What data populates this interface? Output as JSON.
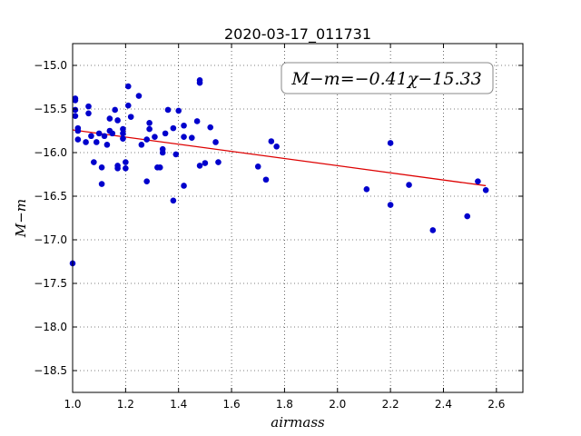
{
  "chart_data": {
    "type": "scatter",
    "title": "2020-03-17_011731",
    "xlabel": "airmass",
    "ylabel": "M−m",
    "xlim": [
      1.0,
      2.7
    ],
    "ylim": [
      -18.75,
      -14.75
    ],
    "y_inverted": true,
    "grid": true,
    "xticks": [
      "1.0",
      "1.2",
      "1.4",
      "1.6",
      "1.8",
      "2.0",
      "2.2",
      "2.4",
      "2.6"
    ],
    "yticks": [
      "−15.0",
      "−15.5",
      "−16.0",
      "−16.5",
      "−17.0",
      "−17.5",
      "−18.0",
      "−18.5"
    ],
    "annotation": "M−m=−0.41χ−15.33",
    "annotation_placement": "top-right",
    "point_color": "#0000cc",
    "fit_color": "#dd0000",
    "fit": {
      "slope": -0.41,
      "intercept": -15.33,
      "x_range": [
        1.0,
        2.56
      ]
    },
    "points": [
      [
        1.0,
        -17.27
      ],
      [
        1.01,
        -15.38
      ],
      [
        1.01,
        -15.4
      ],
      [
        1.01,
        -15.51
      ],
      [
        1.01,
        -15.58
      ],
      [
        1.02,
        -15.72
      ],
      [
        1.02,
        -15.75
      ],
      [
        1.02,
        -15.85
      ],
      [
        1.05,
        -15.88
      ],
      [
        1.06,
        -15.55
      ],
      [
        1.06,
        -15.47
      ],
      [
        1.07,
        -15.81
      ],
      [
        1.08,
        -16.11
      ],
      [
        1.09,
        -15.88
      ],
      [
        1.1,
        -15.78
      ],
      [
        1.11,
        -16.17
      ],
      [
        1.11,
        -16.36
      ],
      [
        1.12,
        -15.81
      ],
      [
        1.13,
        -15.91
      ],
      [
        1.14,
        -15.61
      ],
      [
        1.14,
        -15.75
      ],
      [
        1.15,
        -15.78
      ],
      [
        1.16,
        -15.51
      ],
      [
        1.17,
        -15.63
      ],
      [
        1.17,
        -16.15
      ],
      [
        1.17,
        -16.18
      ],
      [
        1.19,
        -15.78
      ],
      [
        1.19,
        -15.84
      ],
      [
        1.19,
        -15.73
      ],
      [
        1.2,
        -16.11
      ],
      [
        1.2,
        -16.18
      ],
      [
        1.21,
        -15.24
      ],
      [
        1.21,
        -15.46
      ],
      [
        1.22,
        -15.59
      ],
      [
        1.25,
        -15.35
      ],
      [
        1.26,
        -15.91
      ],
      [
        1.28,
        -15.85
      ],
      [
        1.28,
        -16.33
      ],
      [
        1.29,
        -15.66
      ],
      [
        1.29,
        -15.73
      ],
      [
        1.31,
        -15.82
      ],
      [
        1.32,
        -16.17
      ],
      [
        1.33,
        -16.17
      ],
      [
        1.34,
        -15.96
      ],
      [
        1.34,
        -16.0
      ],
      [
        1.35,
        -15.78
      ],
      [
        1.36,
        -15.51
      ],
      [
        1.38,
        -15.72
      ],
      [
        1.38,
        -16.55
      ],
      [
        1.39,
        -16.02
      ],
      [
        1.4,
        -15.52
      ],
      [
        1.42,
        -15.69
      ],
      [
        1.42,
        -15.82
      ],
      [
        1.42,
        -16.38
      ],
      [
        1.45,
        -15.83
      ],
      [
        1.47,
        -15.64
      ],
      [
        1.48,
        -15.17
      ],
      [
        1.48,
        -15.2
      ],
      [
        1.48,
        -16.15
      ],
      [
        1.5,
        -16.12
      ],
      [
        1.52,
        -15.71
      ],
      [
        1.54,
        -15.88
      ],
      [
        1.55,
        -16.11
      ],
      [
        1.7,
        -16.16
      ],
      [
        1.73,
        -16.31
      ],
      [
        1.75,
        -15.87
      ],
      [
        1.77,
        -15.93
      ],
      [
        2.11,
        -16.42
      ],
      [
        2.2,
        -15.89
      ],
      [
        2.2,
        -16.6
      ],
      [
        2.27,
        -16.37
      ],
      [
        2.36,
        -16.89
      ],
      [
        2.49,
        -16.73
      ],
      [
        2.53,
        -16.33
      ],
      [
        2.56,
        -16.43
      ]
    ]
  }
}
